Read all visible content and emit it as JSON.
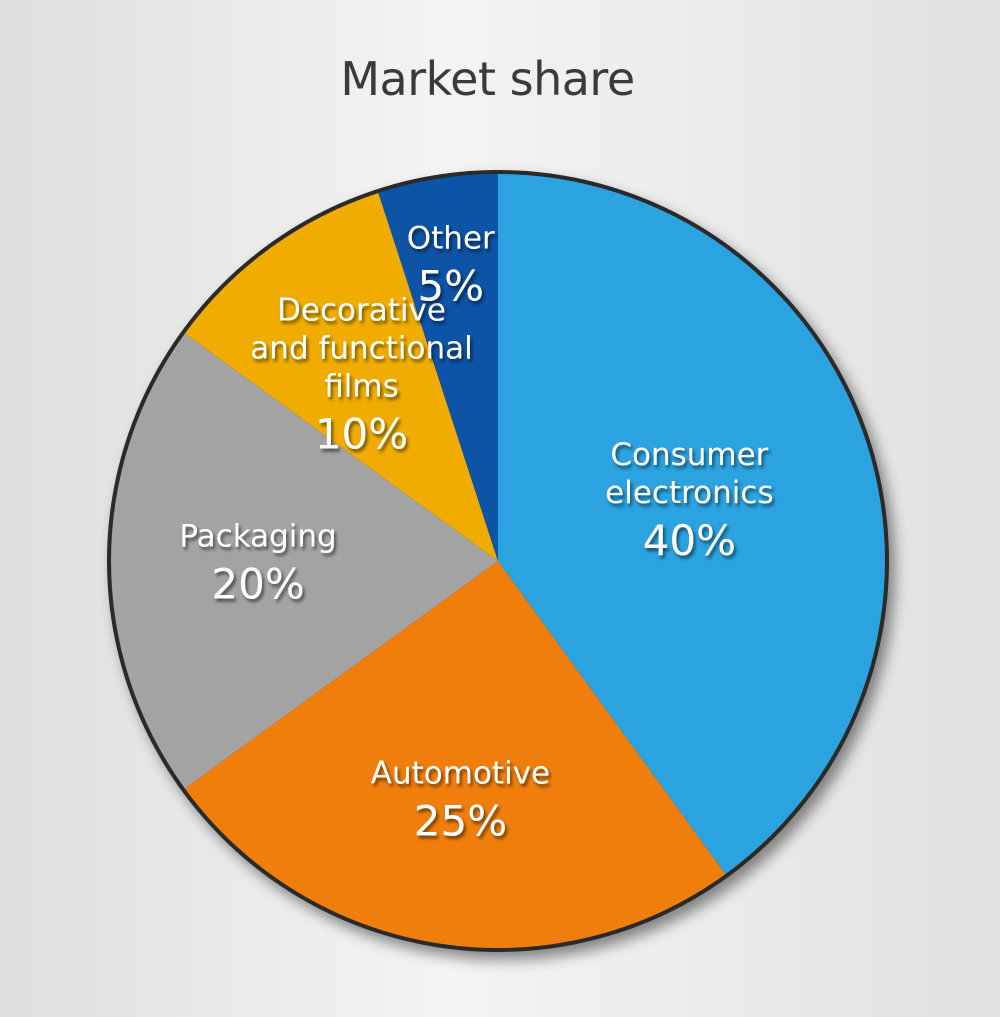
{
  "chart_data": {
    "type": "pie",
    "title": "Market share",
    "slices": [
      {
        "label": [
          "Consumer",
          "electronics"
        ],
        "value": 40,
        "display": "40%",
        "color": "#29a3e0"
      },
      {
        "label": [
          "Automotive"
        ],
        "value": 25,
        "display": "25%",
        "color": "#f07e0c"
      },
      {
        "label": [
          "Packaging"
        ],
        "value": 20,
        "display": "20%",
        "color": "#a3a3a3"
      },
      {
        "label": [
          "Decorative",
          "and functional",
          "films"
        ],
        "value": 10,
        "display": "10%",
        "color": "#f0ac00"
      },
      {
        "label": [
          "Other"
        ],
        "value": 5,
        "display": "5%",
        "color": "#0752a6"
      }
    ]
  }
}
